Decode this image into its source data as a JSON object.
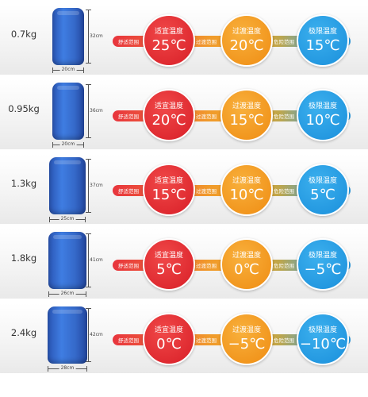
{
  "labels": {
    "comfort": "舒适范围",
    "suitable": "适宜温度",
    "transition_bar": "过渡范围",
    "transition": "过渡温度",
    "danger": "危险范围",
    "limit": "极限温度"
  },
  "rows": [
    {
      "weight": "0.7kg",
      "height": "32cm",
      "width": "20cm",
      "suitable_temp": "25℃",
      "transition_temp": "20℃",
      "limit_temp": "15℃"
    },
    {
      "weight": "0.95kg",
      "height": "36cm",
      "width": "20cm",
      "suitable_temp": "20℃",
      "transition_temp": "15℃",
      "limit_temp": "10℃"
    },
    {
      "weight": "1.3kg",
      "height": "37cm",
      "width": "25cm",
      "suitable_temp": "15℃",
      "transition_temp": "10℃",
      "limit_temp": "5℃"
    },
    {
      "weight": "1.8kg",
      "height": "41cm",
      "width": "26cm",
      "suitable_temp": "5℃",
      "transition_temp": "0℃",
      "limit_temp": "−5℃"
    },
    {
      "weight": "2.4kg",
      "height": "42cm",
      "width": "28cm",
      "suitable_temp": "0℃",
      "transition_temp": "−5℃",
      "limit_temp": "−10℃"
    }
  ],
  "colors": {
    "suitable": "#e22a31",
    "transition": "#f39a1f",
    "limit": "#2a9de2",
    "bag": "#3568cc"
  }
}
